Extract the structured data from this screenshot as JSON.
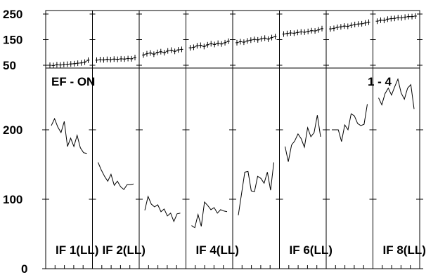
{
  "chart_data": [
    {
      "type": "scatter",
      "title": "",
      "yticks": [
        "250",
        "150",
        "50"
      ],
      "ylim": [
        40,
        260
      ],
      "grid": false,
      "error_bars": true,
      "panels": [
        {
          "x": [
            1,
            2,
            3,
            4,
            5,
            6,
            7,
            8,
            9,
            10,
            11,
            12
          ],
          "y": [
            50,
            49,
            52,
            51,
            53,
            54,
            55,
            56,
            58,
            59,
            62,
            70
          ]
        },
        {
          "x": [
            1,
            2,
            3,
            4,
            5,
            6,
            7,
            8,
            9,
            10,
            11,
            12
          ],
          "y": [
            70,
            72,
            71,
            73,
            72,
            74,
            73,
            75,
            74,
            76,
            75,
            80
          ]
        },
        {
          "x": [
            1,
            2,
            3,
            4,
            5,
            6,
            7,
            8,
            9,
            10,
            11,
            12
          ],
          "y": [
            90,
            95,
            98,
            93,
            100,
            103,
            99,
            106,
            109,
            104,
            110,
            112
          ]
        },
        {
          "x": [
            1,
            2,
            3,
            4,
            5,
            6,
            7,
            8,
            9,
            10,
            11,
            12
          ],
          "y": [
            118,
            120,
            126,
            128,
            123,
            130,
            134,
            131,
            136,
            133,
            138,
            144
          ]
        },
        {
          "x": [
            1,
            2,
            3,
            4,
            5,
            6,
            7,
            8,
            9,
            10,
            11,
            12
          ],
          "y": [
            138,
            142,
            140,
            145,
            148,
            151,
            149,
            153,
            156,
            152,
            158,
            162
          ]
        },
        {
          "x": [
            1,
            2,
            3,
            4,
            5,
            6,
            7,
            8,
            9,
            10,
            11,
            12
          ],
          "y": [
            172,
            174,
            176,
            175,
            178,
            180,
            179,
            182,
            185,
            184,
            188,
            193
          ]
        },
        {
          "x": [
            1,
            2,
            3,
            4,
            5,
            6,
            7,
            8,
            9,
            10,
            11,
            12
          ],
          "y": [
            192,
            194,
            198,
            200,
            203,
            202,
            206,
            209,
            211,
            212,
            215,
            218
          ]
        },
        {
          "x": [
            1,
            2,
            3,
            4,
            5,
            6,
            7,
            8,
            9,
            10,
            11,
            12
          ],
          "y": [
            222,
            226,
            225,
            230,
            232,
            233,
            236,
            235,
            238,
            240,
            240,
            242
          ]
        }
      ]
    },
    {
      "type": "line",
      "title": "",
      "yticks": [
        "200",
        "100",
        "0"
      ],
      "ylim": [
        0,
        270
      ],
      "grid": false,
      "annotations": {
        "left": "EF - ON",
        "right": "1 - 4"
      },
      "panel_labels": [
        "IF 1(LL)",
        "IF 2(LL)",
        "IF 4(LL)",
        "IF 6(LL)",
        "IF 8(LL)"
      ],
      "panel_label_slots": [
        0,
        1,
        3,
        5,
        7
      ],
      "panels": [
        {
          "x": [
            1,
            2,
            3,
            4,
            5,
            6,
            7,
            8,
            9,
            10,
            11,
            12
          ],
          "y": [
            206,
            216,
            204,
            196,
            212,
            176,
            188,
            176,
            192,
            174,
            167,
            166
          ]
        },
        {
          "x": [
            1,
            2,
            3,
            4,
            5,
            6,
            7,
            8,
            9,
            10,
            11,
            12
          ],
          "y": [
            153,
            142,
            133,
            126,
            136,
            120,
            126,
            118,
            114,
            121,
            121,
            122
          ]
        },
        {
          "x": [
            1,
            2,
            3,
            4,
            5,
            6,
            7,
            8,
            9,
            10,
            11,
            12
          ],
          "y": [
            84,
            104,
            93,
            89,
            92,
            82,
            86,
            76,
            80,
            68,
            79,
            80
          ]
        },
        {
          "x": [
            1,
            2,
            3,
            4,
            5,
            6,
            7,
            8,
            9,
            10,
            11,
            12
          ],
          "y": [
            62,
            59,
            78,
            61,
            96,
            91,
            85,
            88,
            80,
            85,
            83,
            82
          ]
        },
        {
          "x": [
            1,
            2,
            3,
            4,
            5,
            6,
            7,
            8,
            9,
            10,
            11,
            12
          ],
          "y": [
            77,
            108,
            139,
            140,
            112,
            111,
            133,
            130,
            123,
            139,
            113,
            153
          ]
        },
        {
          "x": [
            1,
            2,
            3,
            4,
            5,
            6,
            7,
            8,
            9,
            10,
            11,
            12
          ],
          "y": [
            176,
            154,
            178,
            184,
            194,
            187,
            175,
            203,
            190,
            196,
            221,
            190
          ]
        },
        {
          "x": [
            1,
            2,
            3,
            4,
            5,
            6,
            7,
            8,
            9,
            10,
            11,
            12
          ],
          "y": [
            200,
            200,
            200,
            183,
            207,
            200,
            223,
            220,
            209,
            206,
            208,
            237
          ]
        },
        {
          "x": [
            1,
            2,
            3,
            4,
            5,
            6,
            7,
            8,
            9,
            10,
            11,
            12
          ],
          "y": [
            246,
            236,
            252,
            260,
            250,
            262,
            273,
            253,
            244,
            260,
            265,
            230
          ]
        }
      ]
    }
  ]
}
